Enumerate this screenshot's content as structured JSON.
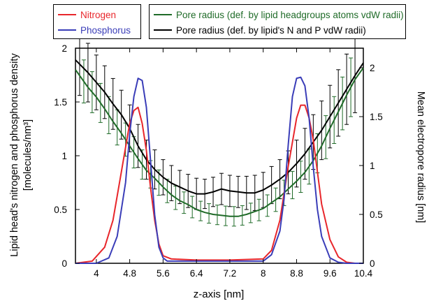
{
  "chart_data": {
    "type": "line",
    "xlabel": "z-axis [nm]",
    "ylabel_left_line1": "Lipid head's nitrogen and phosphorus density",
    "ylabel_left_line2": "[molecules/nm³]",
    "ylabel_right": "Mean electropore radius [nm]",
    "xlim": [
      3.5,
      10.4
    ],
    "ylim_left": [
      0,
      2
    ],
    "ylim_right": [
      0,
      2.2
    ],
    "x_ticks": [
      "4",
      "4.8",
      "5.6",
      "6.4",
      "7.2",
      "8",
      "8.8",
      "9.6",
      "10.4"
    ],
    "x_tick_values": [
      4,
      4.8,
      5.6,
      6.4,
      7.2,
      8,
      8.8,
      9.6,
      10.4
    ],
    "y_left_ticks": [
      "0",
      "0.5",
      "1",
      "1.5",
      "2"
    ],
    "y_left_tick_values": [
      0,
      0.5,
      1,
      1.5,
      2
    ],
    "y_right_ticks": [
      "0",
      "0.5",
      "1",
      "1.5",
      "2"
    ],
    "y_right_tick_values": [
      0,
      0.5,
      1,
      1.5,
      2
    ],
    "legend": [
      {
        "label": "Nitrogen",
        "color": "#e8262b"
      },
      {
        "label": "Phosphorus",
        "color": "#3a3db8"
      },
      {
        "label": "Pore radius (def. by lipid headgroups atoms vdW radii)",
        "color": "#1f6b28"
      },
      {
        "label": "Pore radius (def. by lipid's N and P vdW radii)",
        "color": "#000000"
      }
    ],
    "series": [
      {
        "name": "Nitrogen",
        "axis": "left",
        "color": "#e8262b",
        "x": [
          3.5,
          3.9,
          4.2,
          4.4,
          4.6,
          4.8,
          4.9,
          5.0,
          5.1,
          5.2,
          5.3,
          5.4,
          5.5,
          5.6,
          5.8,
          6.4,
          7.2,
          8.0,
          8.2,
          8.4,
          8.6,
          8.8,
          8.9,
          9.0,
          9.1,
          9.2,
          9.3,
          9.4,
          9.6,
          9.8,
          10.0,
          10.2,
          10.4
        ],
        "y": [
          0.0,
          0.02,
          0.15,
          0.4,
          0.85,
          1.3,
          1.42,
          1.45,
          1.3,
          1.05,
          0.7,
          0.4,
          0.18,
          0.07,
          0.04,
          0.03,
          0.03,
          0.04,
          0.12,
          0.4,
          0.9,
          1.35,
          1.47,
          1.47,
          1.35,
          1.15,
          0.85,
          0.55,
          0.22,
          0.06,
          0.01,
          0.0,
          0.0
        ]
      },
      {
        "name": "Phosphorus",
        "axis": "left",
        "color": "#3a3db8",
        "x": [
          3.5,
          4.0,
          4.3,
          4.5,
          4.7,
          4.8,
          4.9,
          5.0,
          5.1,
          5.2,
          5.3,
          5.4,
          5.5,
          5.6,
          5.7,
          5.9,
          6.4,
          7.2,
          8.0,
          8.2,
          8.4,
          8.5,
          8.6,
          8.7,
          8.8,
          8.9,
          9.0,
          9.1,
          9.2,
          9.3,
          9.4,
          9.6,
          9.8,
          10.0,
          10.4
        ],
        "y": [
          0.0,
          0.0,
          0.05,
          0.25,
          0.75,
          1.2,
          1.55,
          1.72,
          1.7,
          1.45,
          0.95,
          0.45,
          0.15,
          0.05,
          0.02,
          0.02,
          0.02,
          0.02,
          0.02,
          0.08,
          0.3,
          0.6,
          1.1,
          1.55,
          1.72,
          1.73,
          1.65,
          1.35,
          0.9,
          0.5,
          0.25,
          0.05,
          0.01,
          0.0,
          0.0
        ]
      },
      {
        "name": "Pore radius (def. by lipid headgroups atoms vdW radii)",
        "axis": "right",
        "color": "#1f6b28",
        "x": [
          3.5,
          3.8,
          4.0,
          4.2,
          4.4,
          4.6,
          4.8,
          5.0,
          5.2,
          5.4,
          5.6,
          5.8,
          6.0,
          6.2,
          6.4,
          6.6,
          6.8,
          7.0,
          7.2,
          7.4,
          7.6,
          7.8,
          8.0,
          8.2,
          8.4,
          8.6,
          8.8,
          9.0,
          9.2,
          9.4,
          9.6,
          9.8,
          10.0,
          10.2,
          10.4
        ],
        "y": [
          1.98,
          1.8,
          1.7,
          1.58,
          1.45,
          1.33,
          1.2,
          1.07,
          0.95,
          0.87,
          0.78,
          0.7,
          0.64,
          0.6,
          0.55,
          0.52,
          0.5,
          0.49,
          0.48,
          0.48,
          0.5,
          0.53,
          0.56,
          0.62,
          0.68,
          0.76,
          0.84,
          0.93,
          1.05,
          1.2,
          1.38,
          1.55,
          1.72,
          1.88,
          2.0
        ]
      },
      {
        "name": "Pore radius (def. by lipid's N and P vdW radii)",
        "axis": "right",
        "color": "#000000",
        "x": [
          3.5,
          3.8,
          4.0,
          4.2,
          4.4,
          4.6,
          4.8,
          5.0,
          5.2,
          5.4,
          5.6,
          5.8,
          6.0,
          6.2,
          6.4,
          6.6,
          6.8,
          7.0,
          7.2,
          7.4,
          7.6,
          7.8,
          8.0,
          8.2,
          8.4,
          8.6,
          8.8,
          9.0,
          9.2,
          9.4,
          9.6,
          9.8,
          10.0,
          10.2,
          10.4
        ],
        "y": [
          2.08,
          1.95,
          1.85,
          1.75,
          1.63,
          1.52,
          1.38,
          1.2,
          1.06,
          0.96,
          0.88,
          0.82,
          0.78,
          0.74,
          0.71,
          0.71,
          0.73,
          0.76,
          0.74,
          0.73,
          0.72,
          0.72,
          0.75,
          0.8,
          0.86,
          0.93,
          1.02,
          1.12,
          1.24,
          1.36,
          1.5,
          1.64,
          1.78,
          1.92,
          2.05
        ]
      }
    ],
    "errorbars": [
      {
        "series": 3,
        "x": [
          3.6,
          3.8,
          4.0,
          4.2,
          4.4,
          4.6,
          4.8,
          5.0,
          5.2,
          5.4,
          5.6,
          5.8,
          6.0,
          6.2,
          6.4,
          6.6,
          6.8,
          7.0,
          7.2,
          7.4,
          7.6,
          7.8,
          8.0,
          8.2,
          8.4,
          8.6,
          8.8,
          9.0,
          9.2,
          9.4,
          9.6,
          9.8,
          10.0,
          10.2
        ],
        "err": [
          0.32,
          0.3,
          0.28,
          0.27,
          0.26,
          0.25,
          0.24,
          0.22,
          0.2,
          0.2,
          0.18,
          0.18,
          0.17,
          0.17,
          0.16,
          0.15,
          0.15,
          0.16,
          0.16,
          0.16,
          0.17,
          0.18,
          0.18,
          0.19,
          0.2,
          0.22,
          0.24,
          0.26,
          0.28,
          0.3,
          0.32,
          0.34,
          0.36,
          0.38
        ]
      },
      {
        "series": 2,
        "x": [
          3.7,
          3.9,
          4.1,
          4.3,
          4.5,
          4.7,
          4.9,
          5.1,
          5.3,
          5.5,
          5.7,
          5.9,
          6.1,
          6.3,
          6.5,
          6.7,
          6.9,
          7.1,
          7.3,
          7.5,
          7.7,
          7.9,
          8.1,
          8.3,
          8.5,
          8.7,
          8.9,
          9.1,
          9.3,
          9.5,
          9.7,
          9.9,
          10.1
        ],
        "err": [
          0.22,
          0.21,
          0.2,
          0.19,
          0.18,
          0.17,
          0.16,
          0.15,
          0.14,
          0.13,
          0.12,
          0.12,
          0.11,
          0.11,
          0.1,
          0.1,
          0.1,
          0.1,
          0.1,
          0.1,
          0.1,
          0.11,
          0.11,
          0.12,
          0.13,
          0.14,
          0.16,
          0.18,
          0.2,
          0.22,
          0.24,
          0.27,
          0.3
        ]
      }
    ]
  }
}
